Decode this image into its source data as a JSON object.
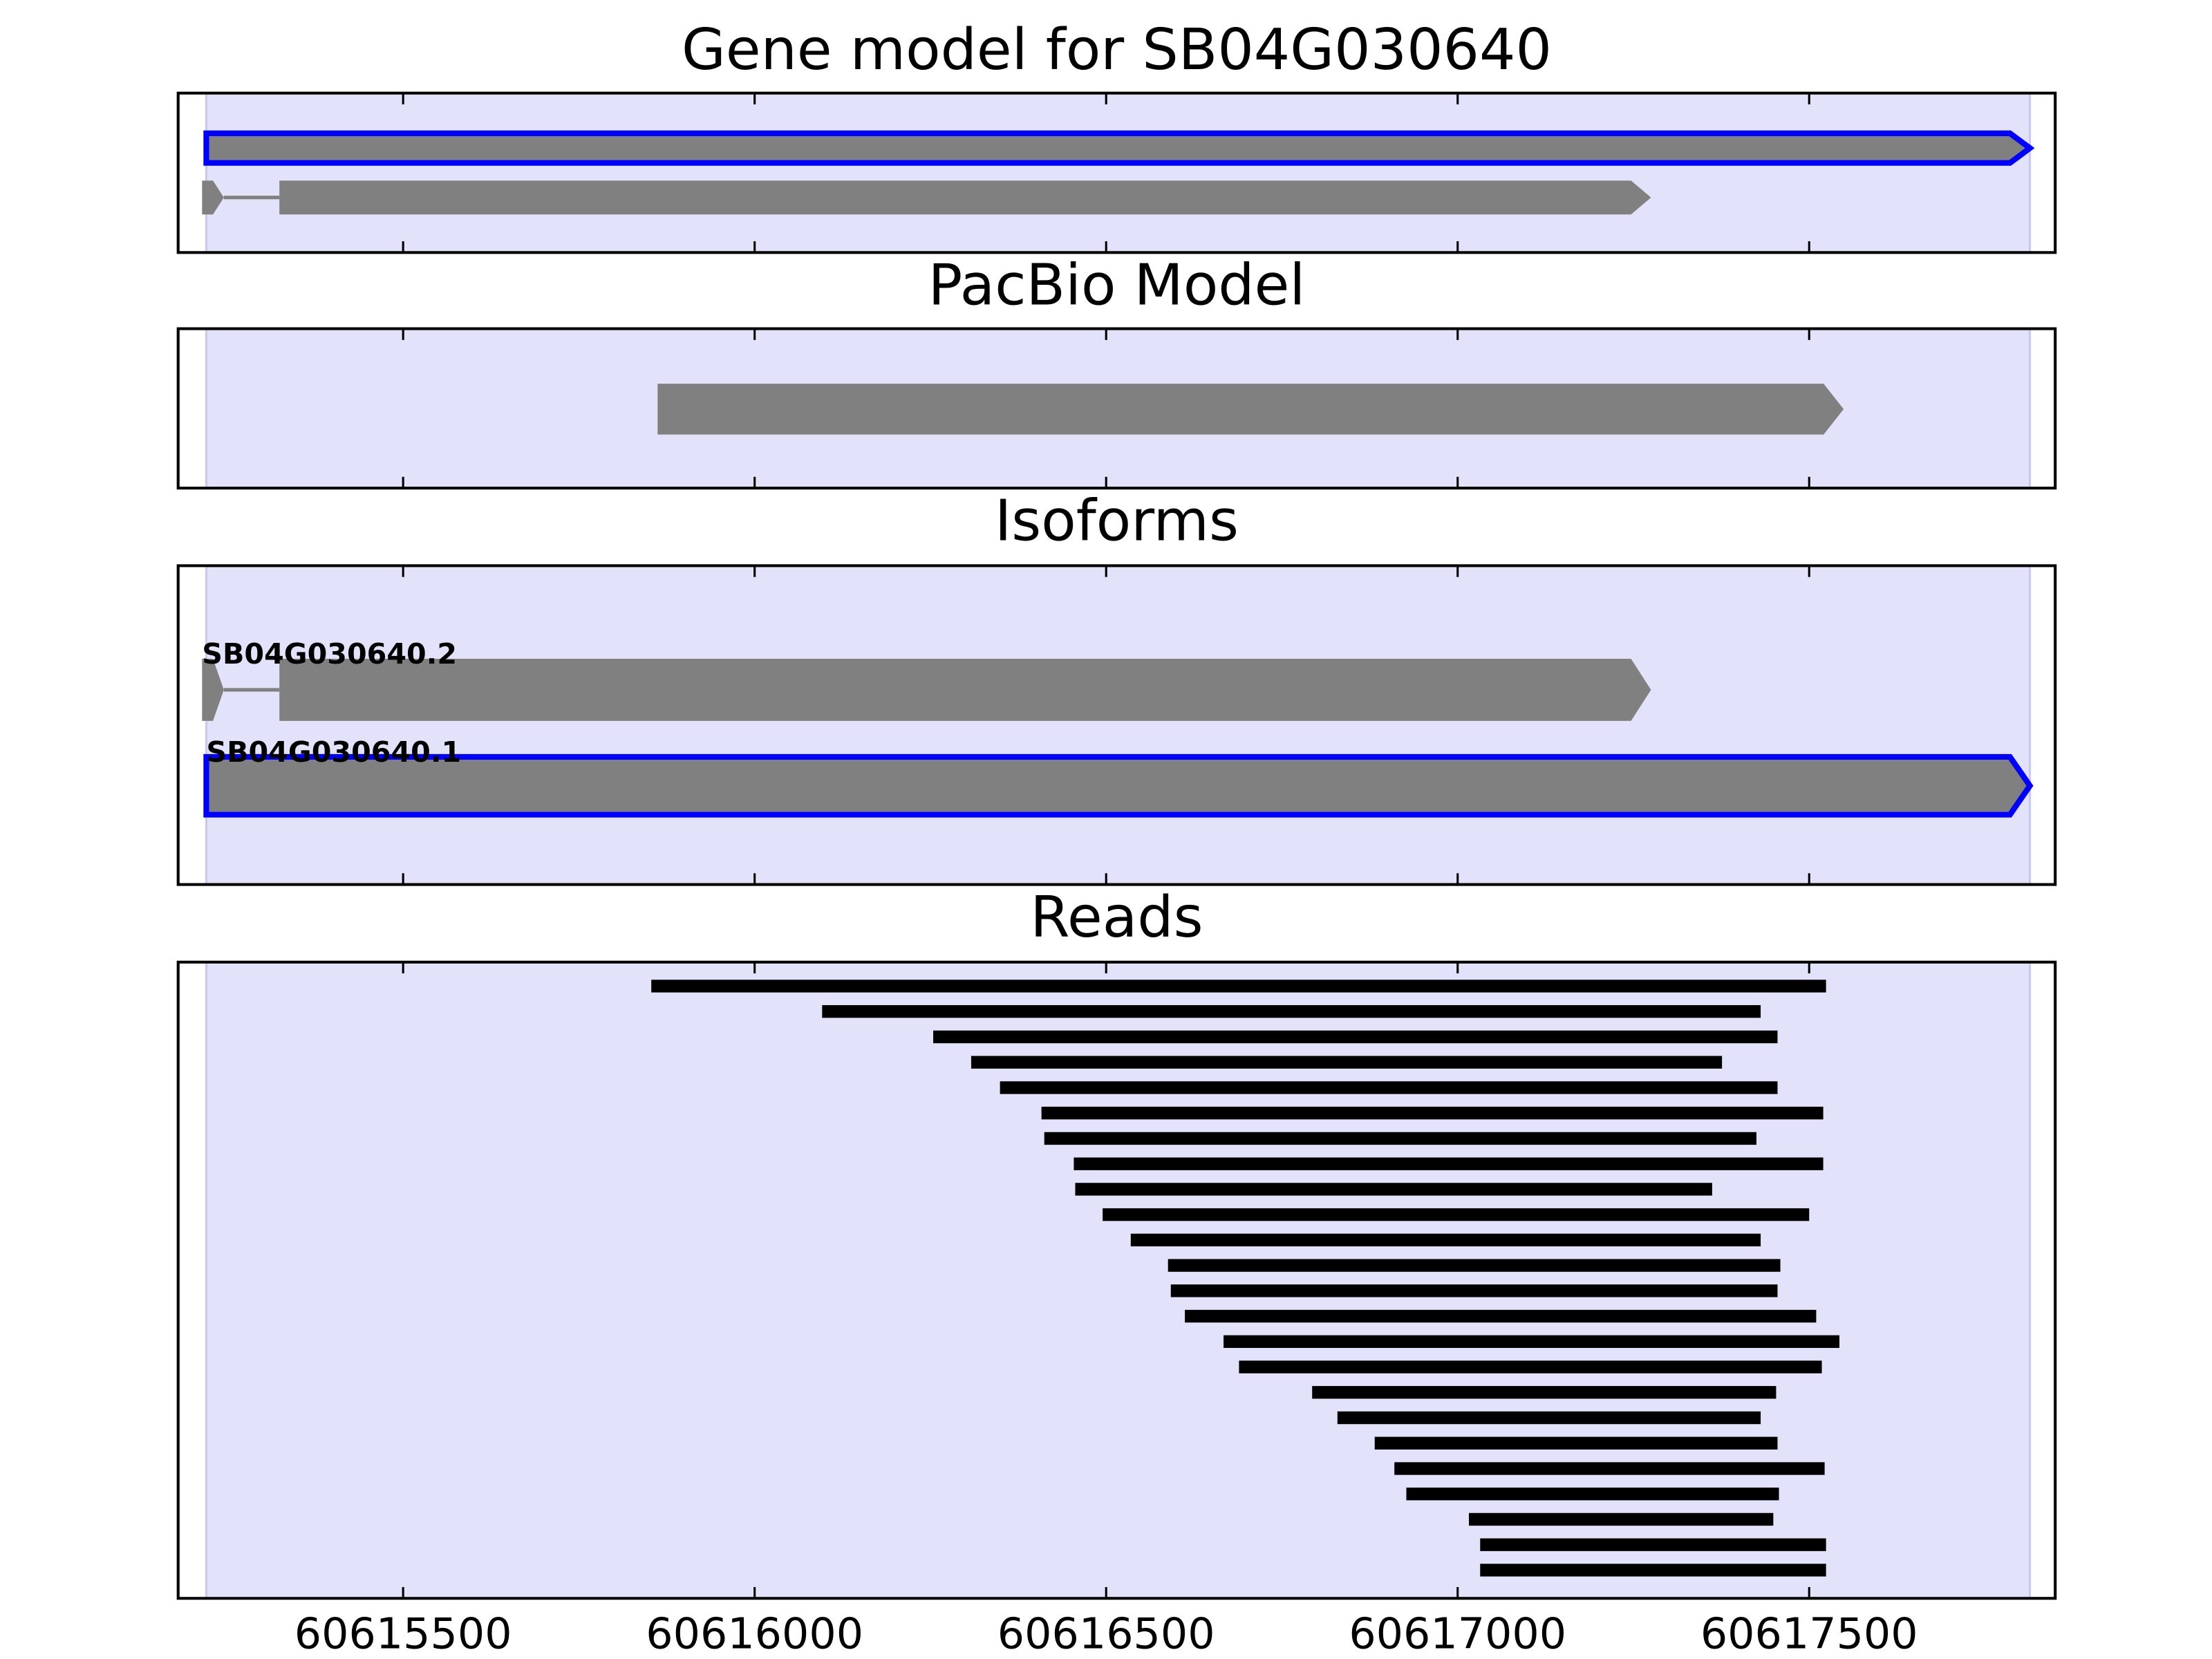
{
  "chart_data": {
    "type": "genome-tracks",
    "xlim": [
      60615180,
      60617850
    ],
    "xticks": [
      60615500,
      60616000,
      60616500,
      60617000,
      60617500
    ],
    "highlight": [
      60615220,
      60617814
    ],
    "highlight_color": "#e2e2fb",
    "exon_color": "#808080",
    "selected_color": "#0000ff",
    "read_color": "#000000",
    "panels": [
      {
        "type": "transcripts",
        "title": "Gene model for SB04G030640",
        "transcripts": [
          {
            "exons": [
              [
                60615220,
                60617814
              ]
            ],
            "selected": true
          },
          {
            "exons": [
              [
                60615214,
                60615245
              ],
              [
                60615324,
                60617275
              ]
            ],
            "selected": false
          }
        ]
      },
      {
        "type": "transcripts",
        "title": "PacBio Model",
        "transcripts": [
          {
            "exons": [
              [
                60615862,
                60617549
              ]
            ],
            "selected": false
          }
        ]
      },
      {
        "type": "transcripts",
        "title": "Isoforms",
        "transcripts": [
          {
            "name": "SB04G030640.2",
            "exons": [
              [
                60615214,
                60615245
              ],
              [
                60615324,
                60617275
              ]
            ],
            "selected": false
          },
          {
            "name": "SB04G030640.1",
            "exons": [
              [
                60615220,
                60617814
              ]
            ],
            "selected": true
          }
        ]
      },
      {
        "type": "reads",
        "title": "Reads",
        "reads": [
          [
            60615853,
            60617524
          ],
          [
            60616096,
            60617431
          ],
          [
            60616254,
            60617455
          ],
          [
            60616308,
            60617376
          ],
          [
            60616349,
            60617455
          ],
          [
            60616408,
            60617520
          ],
          [
            60616412,
            60617425
          ],
          [
            60616454,
            60617520
          ],
          [
            60616456,
            60617362
          ],
          [
            60616495,
            60617500
          ],
          [
            60616535,
            60617431
          ],
          [
            60616588,
            60617459
          ],
          [
            60616592,
            60617455
          ],
          [
            60616612,
            60617510
          ],
          [
            60616667,
            60617543
          ],
          [
            60616689,
            60617518
          ],
          [
            60616793,
            60617453
          ],
          [
            60616829,
            60617431
          ],
          [
            60616882,
            60617455
          ],
          [
            60616910,
            60617522
          ],
          [
            60616927,
            60617457
          ],
          [
            60617016,
            60617449
          ],
          [
            60617032,
            60617524
          ],
          [
            60617032,
            60617524
          ]
        ]
      }
    ]
  }
}
